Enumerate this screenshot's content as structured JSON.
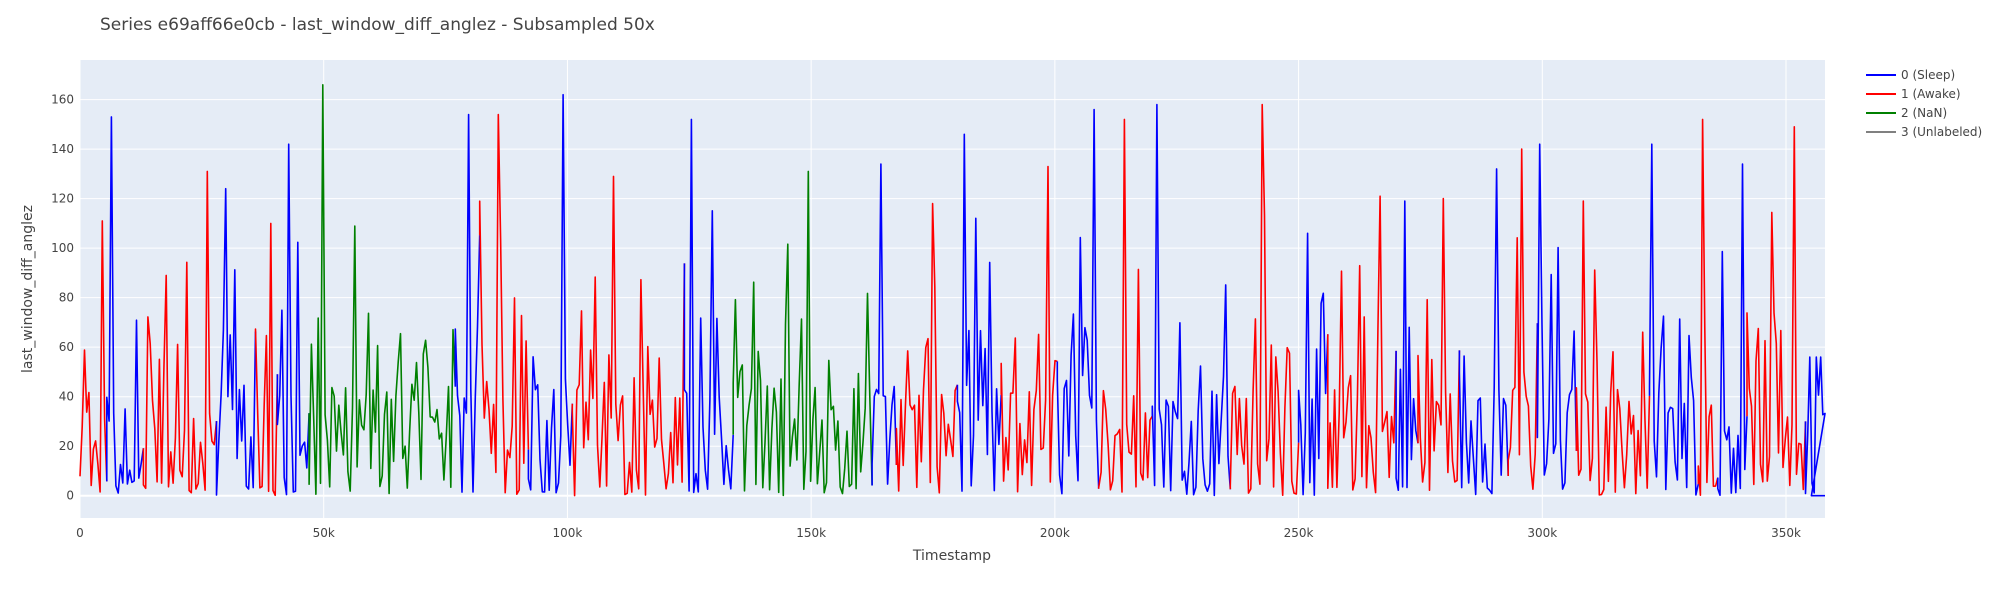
{
  "chart_data": {
    "type": "line",
    "title": "Series e69aff66e0cb - last_window_diff_anglez - Subsampled 50x",
    "xlabel": "Timestamp",
    "ylabel": "last_window_diff_anglez",
    "xlim": [
      0,
      358000
    ],
    "ylim": [
      -9,
      176
    ],
    "x_ticks": [
      {
        "value": 0,
        "label": "0"
      },
      {
        "value": 50000,
        "label": "50k"
      },
      {
        "value": 100000,
        "label": "100k"
      },
      {
        "value": 150000,
        "label": "150k"
      },
      {
        "value": 200000,
        "label": "200k"
      },
      {
        "value": 250000,
        "label": "250k"
      },
      {
        "value": 300000,
        "label": "300k"
      },
      {
        "value": 350000,
        "label": "350k"
      }
    ],
    "y_ticks": [
      {
        "value": 0,
        "label": "0"
      },
      {
        "value": 20,
        "label": "20"
      },
      {
        "value": 40,
        "label": "40"
      },
      {
        "value": 60,
        "label": "60"
      },
      {
        "value": 80,
        "label": "80"
      },
      {
        "value": 100,
        "label": "100"
      },
      {
        "value": 120,
        "label": "120"
      },
      {
        "value": 140,
        "label": "140"
      },
      {
        "value": 160,
        "label": "160"
      }
    ],
    "grid": true,
    "legend_position": "top-right",
    "series": [
      {
        "name": "0 (Sleep)",
        "color": "#0000ff"
      },
      {
        "name": "1 (Awake)",
        "color": "#ff0000"
      },
      {
        "name": "2 (NaN)",
        "color": "#008000"
      },
      {
        "name": "3 (Unlabeled)",
        "color": "#808080"
      }
    ],
    "segments": [
      {
        "series": 1,
        "x_start": 0,
        "x_end": 5500,
        "peak": 111
      },
      {
        "series": 0,
        "x_start": 5500,
        "x_end": 13000,
        "peak": 153
      },
      {
        "series": 1,
        "x_start": 13000,
        "x_end": 28000,
        "peak": 131
      },
      {
        "series": 0,
        "x_start": 28000,
        "x_end": 36000,
        "peak": 124
      },
      {
        "series": 1,
        "x_start": 36000,
        "x_end": 40500,
        "peak": 110
      },
      {
        "series": 0,
        "x_start": 40500,
        "x_end": 47000,
        "peak": 142
      },
      {
        "series": 2,
        "x_start": 47000,
        "x_end": 77000,
        "peak": 166
      },
      {
        "series": 0,
        "x_start": 77000,
        "x_end": 82000,
        "peak": 154
      },
      {
        "series": 1,
        "x_start": 82000,
        "x_end": 92000,
        "peak": 154
      },
      {
        "series": 0,
        "x_start": 92000,
        "x_end": 101000,
        "peak": 162
      },
      {
        "series": 1,
        "x_start": 101000,
        "x_end": 124000,
        "peak": 129
      },
      {
        "series": 0,
        "x_start": 124000,
        "x_end": 134000,
        "peak": 152
      },
      {
        "series": 2,
        "x_start": 134000,
        "x_end": 162500,
        "peak": 131
      },
      {
        "series": 0,
        "x_start": 162500,
        "x_end": 167500,
        "peak": 134
      },
      {
        "series": 1,
        "x_start": 167500,
        "x_end": 180000,
        "peak": 118
      },
      {
        "series": 0,
        "x_start": 180000,
        "x_end": 189000,
        "peak": 146
      },
      {
        "series": 1,
        "x_start": 189000,
        "x_end": 200500,
        "peak": 133
      },
      {
        "series": 0,
        "x_start": 200500,
        "x_end": 209000,
        "peak": 156
      },
      {
        "series": 1,
        "x_start": 209000,
        "x_end": 220000,
        "peak": 152
      },
      {
        "series": 0,
        "x_start": 220000,
        "x_end": 236000,
        "peak": 158
      },
      {
        "series": 1,
        "x_start": 236000,
        "x_end": 250000,
        "peak": 158
      },
      {
        "series": 0,
        "x_start": 250000,
        "x_end": 256000,
        "peak": 106
      },
      {
        "series": 1,
        "x_start": 256000,
        "x_end": 270000,
        "peak": 121
      },
      {
        "series": 0,
        "x_start": 270000,
        "x_end": 274500,
        "peak": 119
      },
      {
        "series": 1,
        "x_start": 274500,
        "x_end": 283000,
        "peak": 120
      },
      {
        "series": 0,
        "x_start": 283000,
        "x_end": 293000,
        "peak": 132
      },
      {
        "series": 1,
        "x_start": 293000,
        "x_end": 299000,
        "peak": 140
      },
      {
        "series": 0,
        "x_start": 299000,
        "x_end": 307000,
        "peak": 142
      },
      {
        "series": 1,
        "x_start": 307000,
        "x_end": 322000,
        "peak": 119
      },
      {
        "series": 0,
        "x_start": 322000,
        "x_end": 332000,
        "peak": 142
      },
      {
        "series": 1,
        "x_start": 332000,
        "x_end": 336000,
        "peak": 152
      },
      {
        "series": 0,
        "x_start": 336000,
        "x_end": 342000,
        "peak": 134
      },
      {
        "series": 1,
        "x_start": 342000,
        "x_end": 354000,
        "peak": 149
      },
      {
        "series": 0,
        "x_start": 354000,
        "x_end": 358000,
        "peak": 56
      }
    ]
  }
}
